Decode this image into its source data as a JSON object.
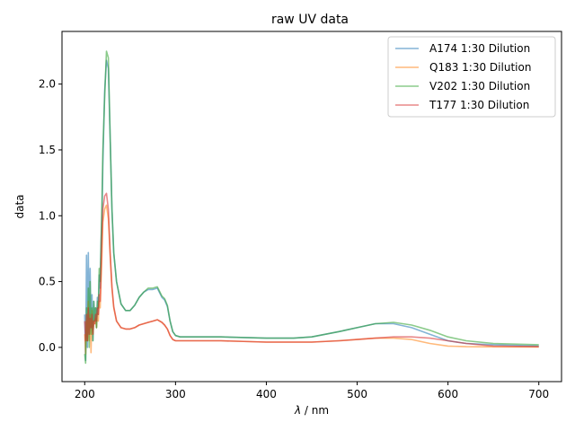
{
  "chart_data": {
    "type": "line",
    "title": "raw UV data",
    "xlabel_symbol": "λ",
    "xlabel_unit": " / nm",
    "ylabel": "data",
    "xlim": [
      175,
      725
    ],
    "ylim": [
      -0.26,
      2.4
    ],
    "x_ticks": [
      200,
      300,
      400,
      500,
      600,
      700
    ],
    "x_tick_labels": [
      "200",
      "300",
      "400",
      "500",
      "600",
      "700"
    ],
    "y_ticks": [
      0.0,
      0.5,
      1.0,
      1.5,
      2.0
    ],
    "y_tick_labels": [
      "0.0",
      "0.5",
      "1.0",
      "1.5",
      "2.0"
    ],
    "grid": false,
    "legend_position": "top-right",
    "series": [
      {
        "name": "A174 1:30 Dilution",
        "color": "#1f77b4",
        "x": [
          200,
          201,
          202,
          203,
          204,
          205,
          206,
          207,
          208,
          209,
          210,
          211,
          212,
          213,
          214,
          215,
          216,
          217,
          218,
          219,
          220,
          222,
          224,
          226,
          228,
          230,
          232,
          235,
          240,
          245,
          250,
          255,
          260,
          265,
          270,
          275,
          280,
          285,
          288,
          291,
          294,
          297,
          300,
          305,
          310,
          320,
          350,
          400,
          430,
          450,
          480,
          500,
          520,
          540,
          560,
          580,
          600,
          620,
          650,
          700
        ],
        "y": [
          0.25,
          -0.1,
          0.7,
          0.0,
          0.72,
          0.1,
          0.6,
          0.15,
          0.4,
          0.05,
          0.35,
          0.2,
          0.3,
          0.15,
          0.38,
          0.25,
          0.55,
          0.45,
          0.8,
          1.0,
          1.4,
          1.95,
          2.18,
          2.12,
          1.6,
          1.05,
          0.72,
          0.5,
          0.33,
          0.28,
          0.28,
          0.32,
          0.38,
          0.42,
          0.44,
          0.44,
          0.45,
          0.38,
          0.36,
          0.31,
          0.2,
          0.12,
          0.09,
          0.08,
          0.08,
          0.08,
          0.08,
          0.07,
          0.07,
          0.08,
          0.12,
          0.15,
          0.18,
          0.18,
          0.15,
          0.1,
          0.05,
          0.03,
          0.02,
          0.01
        ]
      },
      {
        "name": "Q183 1:30 Dilution",
        "color": "#ff7f0e",
        "x": [
          200,
          201,
          202,
          203,
          204,
          205,
          206,
          207,
          208,
          209,
          210,
          211,
          212,
          213,
          214,
          215,
          216,
          217,
          218,
          219,
          220,
          222,
          224,
          226,
          228,
          230,
          232,
          235,
          240,
          245,
          250,
          255,
          260,
          265,
          270,
          275,
          280,
          285,
          288,
          291,
          294,
          297,
          300,
          305,
          310,
          320,
          350,
          400,
          430,
          450,
          480,
          500,
          520,
          540,
          560,
          580,
          600,
          620,
          650,
          700
        ],
        "y": [
          0.1,
          -0.05,
          0.2,
          0.05,
          0.35,
          0.05,
          0.25,
          -0.04,
          0.28,
          0.1,
          0.2,
          0.18,
          0.22,
          0.15,
          0.26,
          0.2,
          0.35,
          0.3,
          0.5,
          0.7,
          0.95,
          1.05,
          1.08,
          0.98,
          0.7,
          0.45,
          0.3,
          0.2,
          0.15,
          0.14,
          0.14,
          0.15,
          0.17,
          0.18,
          0.19,
          0.2,
          0.21,
          0.19,
          0.17,
          0.14,
          0.09,
          0.06,
          0.05,
          0.05,
          0.05,
          0.05,
          0.05,
          0.04,
          0.04,
          0.04,
          0.05,
          0.06,
          0.07,
          0.07,
          0.06,
          0.03,
          0.01,
          0.005,
          0.004,
          0.003
        ]
      },
      {
        "name": "V202 1:30 Dilution",
        "color": "#2ca02c",
        "x": [
          200,
          201,
          202,
          203,
          204,
          205,
          206,
          207,
          208,
          209,
          210,
          211,
          212,
          213,
          214,
          215,
          216,
          217,
          218,
          219,
          220,
          222,
          224,
          226,
          228,
          230,
          232,
          235,
          240,
          245,
          250,
          255,
          260,
          265,
          270,
          275,
          280,
          285,
          288,
          291,
          294,
          297,
          300,
          305,
          310,
          320,
          350,
          400,
          430,
          450,
          480,
          500,
          520,
          540,
          560,
          580,
          600,
          620,
          650,
          700
        ],
        "y": [
          -0.05,
          -0.12,
          0.3,
          0.05,
          0.45,
          0.0,
          0.5,
          0.1,
          0.3,
          0.05,
          0.35,
          0.2,
          0.3,
          0.15,
          0.35,
          0.3,
          0.6,
          0.5,
          0.8,
          1.1,
          1.5,
          1.9,
          2.25,
          2.2,
          1.6,
          1.05,
          0.72,
          0.5,
          0.33,
          0.28,
          0.28,
          0.32,
          0.38,
          0.42,
          0.45,
          0.45,
          0.46,
          0.39,
          0.37,
          0.32,
          0.2,
          0.12,
          0.09,
          0.08,
          0.08,
          0.08,
          0.08,
          0.07,
          0.07,
          0.08,
          0.12,
          0.15,
          0.18,
          0.19,
          0.17,
          0.13,
          0.08,
          0.05,
          0.03,
          0.02
        ]
      },
      {
        "name": "T177 1:30 Dilution",
        "color": "#d62728",
        "x": [
          200,
          201,
          202,
          203,
          204,
          205,
          206,
          207,
          208,
          209,
          210,
          211,
          212,
          213,
          214,
          215,
          216,
          217,
          218,
          219,
          220,
          222,
          224,
          226,
          228,
          230,
          232,
          235,
          240,
          245,
          250,
          255,
          260,
          265,
          270,
          275,
          280,
          285,
          288,
          291,
          294,
          297,
          300,
          305,
          310,
          320,
          350,
          400,
          430,
          450,
          480,
          500,
          520,
          540,
          560,
          580,
          600,
          620,
          650,
          700
        ],
        "y": [
          0.2,
          0.05,
          0.25,
          0.05,
          0.3,
          0.1,
          0.22,
          0.15,
          0.25,
          0.1,
          0.2,
          0.18,
          0.25,
          0.2,
          0.3,
          0.25,
          0.4,
          0.35,
          0.6,
          0.85,
          1.05,
          1.15,
          1.17,
          1.05,
          0.72,
          0.46,
          0.31,
          0.2,
          0.15,
          0.14,
          0.14,
          0.15,
          0.17,
          0.18,
          0.19,
          0.2,
          0.21,
          0.19,
          0.17,
          0.14,
          0.09,
          0.06,
          0.05,
          0.05,
          0.05,
          0.05,
          0.05,
          0.04,
          0.04,
          0.04,
          0.05,
          0.06,
          0.07,
          0.08,
          0.08,
          0.07,
          0.05,
          0.03,
          0.01,
          0.005
        ]
      }
    ]
  }
}
